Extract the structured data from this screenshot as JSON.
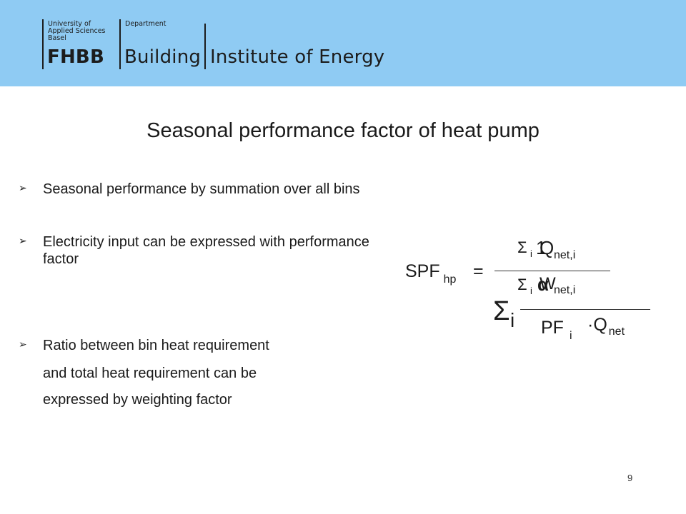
{
  "header": {
    "university_line1": "University of",
    "university_line2": "Applied Sciences",
    "university_line3": "Basel",
    "department_label": "Department",
    "logo": "FHBB",
    "department_name": "Building",
    "institute": "Institute of Energy",
    "background_color": "#8fcbf3"
  },
  "slide": {
    "title": "Seasonal performance factor of heat pump",
    "bullets": [
      {
        "text": "Seasonal performance by summation over all bins"
      },
      {
        "text": "Electricity input can be expressed with performance factor"
      },
      {
        "text": "Ratio between bin heat requirement"
      }
    ],
    "continuation_lines": [
      "and total heat requirement can be",
      "expressed by weighting factor"
    ],
    "page_number": "9"
  },
  "formula": {
    "lhs": "SPF",
    "lhs_sub": "hp",
    "equals": "=",
    "sigma": "Σ",
    "i": "i",
    "num_symbol": "Q",
    "num_sub": "net,i",
    "num_overlay": "1",
    "den_symbol": "W",
    "den_sub": "net,i",
    "den_overlay": "α",
    "big_sigma": "Σ",
    "big_i": "i",
    "pf": "PF",
    "pf_sub": "i",
    "qnet": "·Q",
    "qnet_sub": "net"
  }
}
